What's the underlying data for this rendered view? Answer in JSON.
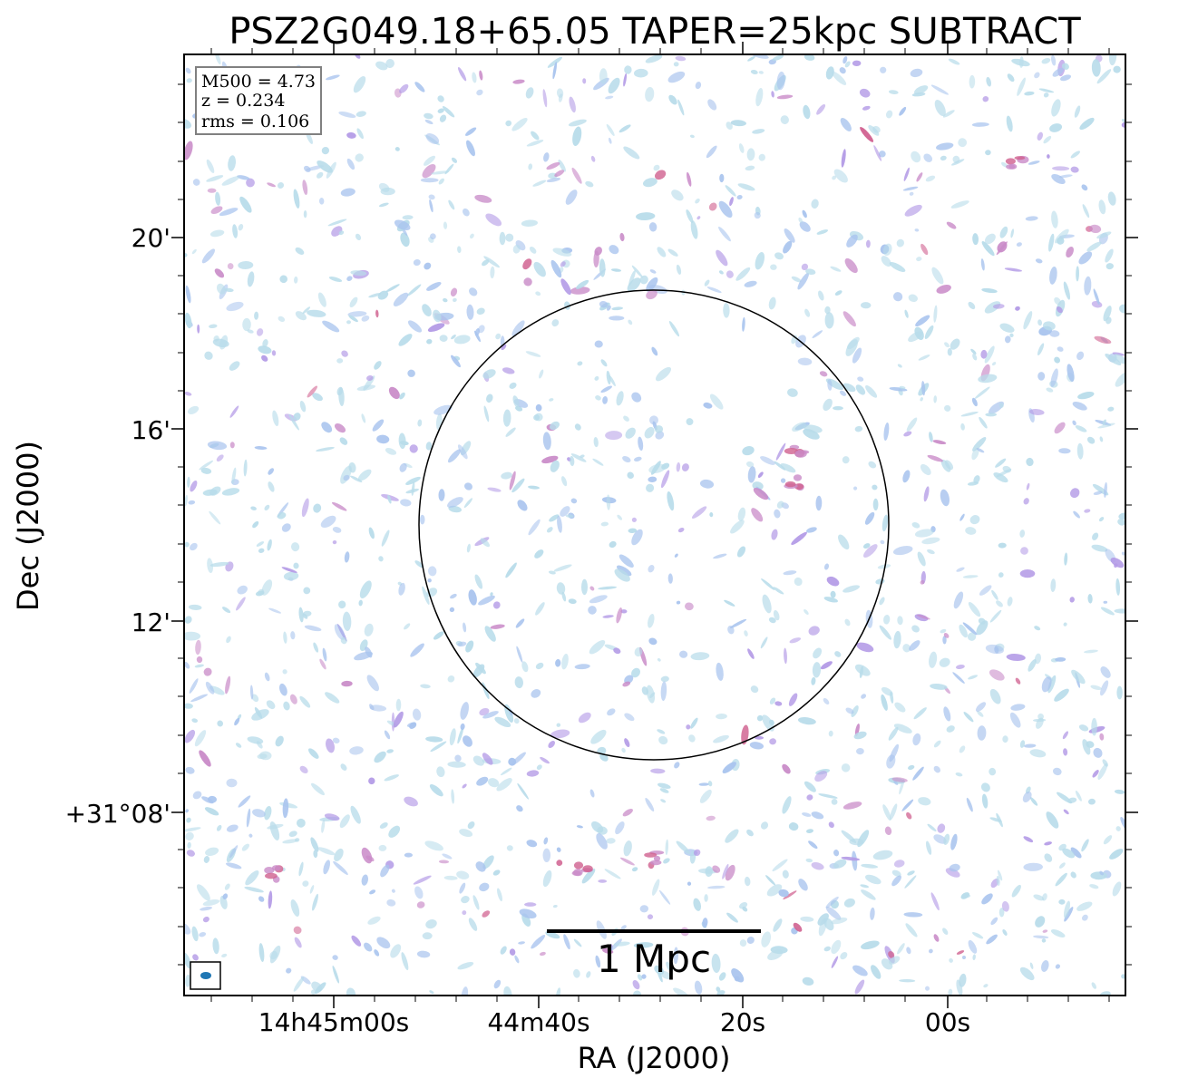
{
  "chart_data": {
    "type": "heatmap",
    "title": "PSZ2G049.18+65.05 TAPER=25kpc SUBTRACT",
    "xlabel": "RA (J2000)",
    "ylabel": "Dec (J2000)",
    "x_ticks": [
      "14h45m00s",
      "44m40s",
      "20s",
      "00s"
    ],
    "y_ticks": [
      "20'",
      "16'",
      "12'",
      "+31°08'"
    ],
    "info_box": {
      "m500": "M500 = 4.73",
      "z": "z = 0.234",
      "rms": "rms = 0.106"
    },
    "scale_bar_label": "1 Mpc",
    "colormap": [
      "#b8dcea",
      "#a9c4ee",
      "#b39ae6",
      "#c98bc8",
      "#d0608f"
    ],
    "grid": false
  }
}
